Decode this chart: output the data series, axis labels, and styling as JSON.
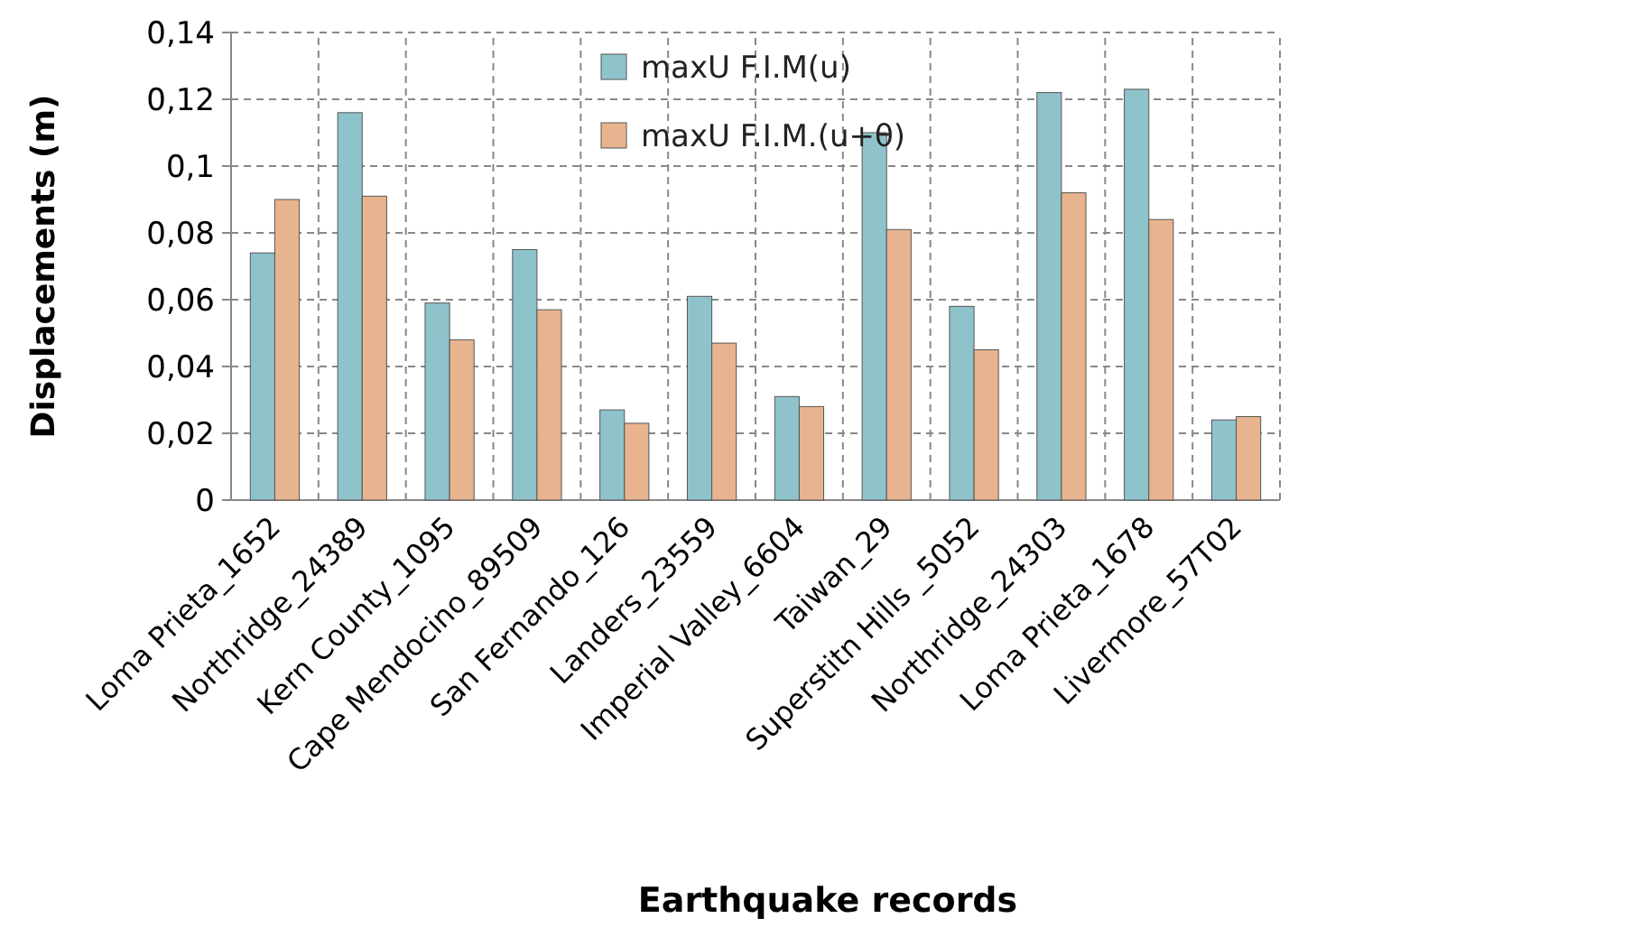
{
  "chart_data": {
    "type": "bar",
    "xlabel": "Earthquake records",
    "ylabel": "Displacements (m)",
    "categories": [
      "Loma Prieta_1652",
      "Northridge_24389",
      "Kern County_1095",
      "Cape Mendocino_89509",
      "San Fernando_126",
      "Landers_23559",
      "Imperial Valley_6604",
      "Taiwan_29",
      "Superstitn Hills _5052",
      "Northridge_24303",
      "Loma Prieta_1678",
      "Livermore_57T02"
    ],
    "series": [
      {
        "name": "maxU F.I.M(u)",
        "color": "#8fc3cc",
        "values": [
          0.074,
          0.116,
          0.059,
          0.075,
          0.027,
          0.061,
          0.031,
          0.11,
          0.058,
          0.122,
          0.123,
          0.024
        ]
      },
      {
        "name": "maxU F.I.M.(u+θ)",
        "color": "#e8b48f",
        "values": [
          0.09,
          0.091,
          0.048,
          0.057,
          0.023,
          0.047,
          0.028,
          0.081,
          0.045,
          0.092,
          0.084,
          0.025
        ]
      }
    ],
    "ylim": [
      0,
      0.14
    ],
    "yticks": [
      0,
      {
        "value": 0.02,
        "label": "0,02"
      },
      {
        "value": 0.04,
        "label": "0,04"
      },
      {
        "value": 0.06,
        "label": "0,06"
      },
      {
        "value": 0.08,
        "label": "0,08"
      },
      {
        "value": 0.1,
        "label": "0,1"
      },
      {
        "value": 0.12,
        "label": "0,12"
      },
      {
        "value": 0.14,
        "label": "0,14"
      }
    ],
    "grid": true,
    "line_style": "dashed",
    "legend": "top"
  }
}
